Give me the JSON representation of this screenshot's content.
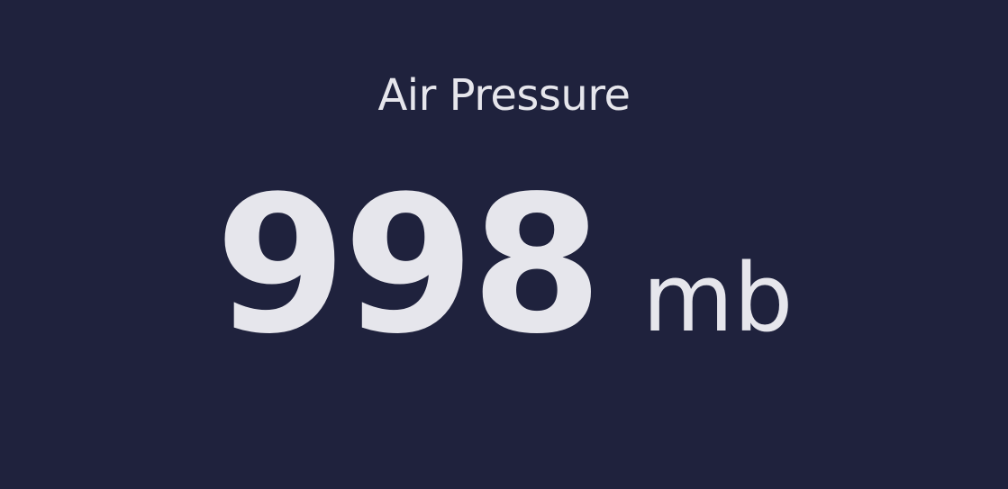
{
  "widget": {
    "title": "Air Pressure",
    "value": "998",
    "unit": "mb"
  },
  "colors": {
    "background": "#1f223d",
    "text": "#e6e6ec"
  }
}
